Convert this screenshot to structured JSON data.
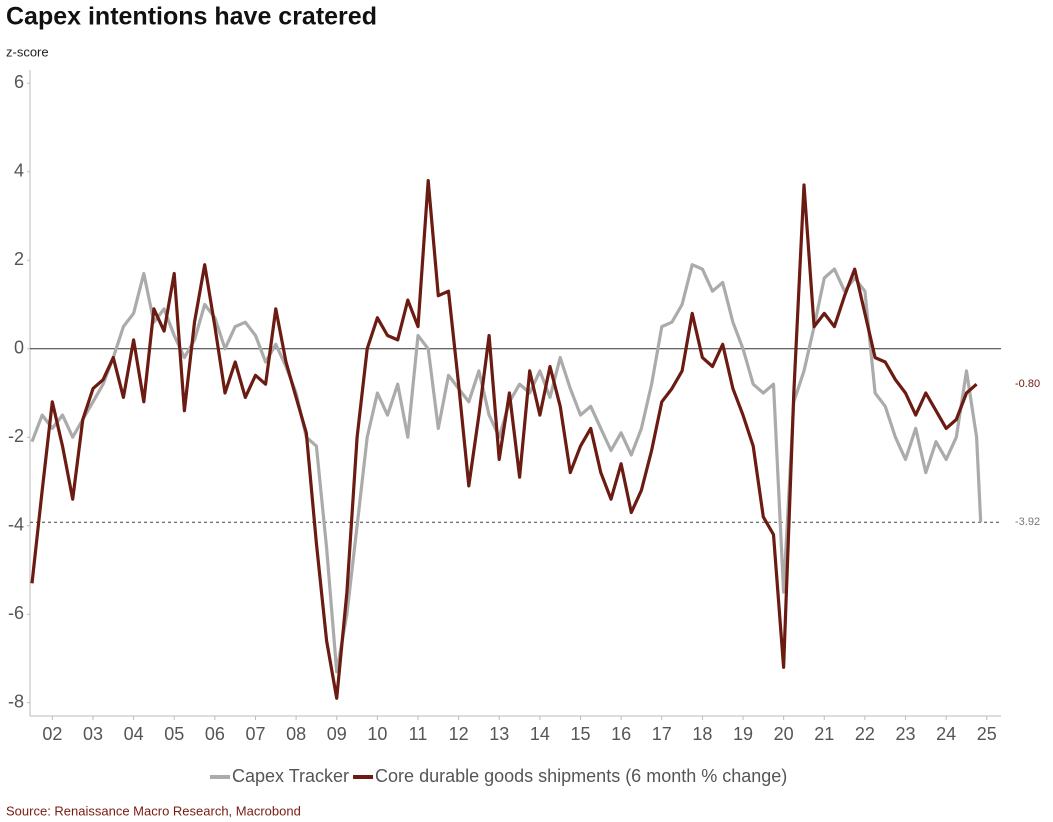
{
  "chart_data": {
    "type": "line",
    "title": "Capex intentions have cratered",
    "y_label": "z-score",
    "source": "Source: Renaissance Macro Research, Macrobond",
    "xlim": [
      2001.45,
      2025.35
    ],
    "xticks": [
      {
        "value": 2002,
        "label": "02"
      },
      {
        "value": 2003,
        "label": "03"
      },
      {
        "value": 2004,
        "label": "04"
      },
      {
        "value": 2005,
        "label": "05"
      },
      {
        "value": 2006,
        "label": "06"
      },
      {
        "value": 2007,
        "label": "07"
      },
      {
        "value": 2008,
        "label": "08"
      },
      {
        "value": 2009,
        "label": "09"
      },
      {
        "value": 2010,
        "label": "10"
      },
      {
        "value": 2011,
        "label": "11"
      },
      {
        "value": 2012,
        "label": "12"
      },
      {
        "value": 2013,
        "label": "13"
      },
      {
        "value": 2014,
        "label": "14"
      },
      {
        "value": 2015,
        "label": "15"
      },
      {
        "value": 2016,
        "label": "16"
      },
      {
        "value": 2017,
        "label": "17"
      },
      {
        "value": 2018,
        "label": "18"
      },
      {
        "value": 2019,
        "label": "19"
      },
      {
        "value": 2020,
        "label": "20"
      },
      {
        "value": 2021,
        "label": "21"
      },
      {
        "value": 2022,
        "label": "22"
      },
      {
        "value": 2023,
        "label": "23"
      },
      {
        "value": 2024,
        "label": "24"
      },
      {
        "value": 2025,
        "label": "25"
      }
    ],
    "ylim": [
      -8.3,
      6.3
    ],
    "yticks": [
      -8,
      -6,
      -4,
      -2,
      0,
      2,
      4,
      6
    ],
    "hlines": [
      {
        "value": 0,
        "style": "solid"
      },
      {
        "value": -3.92,
        "style": "dashed"
      }
    ],
    "annotations": [
      {
        "text": "-0.80",
        "value": -0.8
      },
      {
        "text": "-3.92",
        "value": -3.92
      }
    ],
    "series": [
      {
        "name": "Capex Tracker",
        "color": "#ababab",
        "x": [
          2001.5,
          2001.75,
          2002,
          2002.25,
          2002.5,
          2002.75,
          2003,
          2003.25,
          2003.5,
          2003.75,
          2004,
          2004.25,
          2004.5,
          2004.75,
          2005,
          2005.25,
          2005.5,
          2005.75,
          2006,
          2006.25,
          2006.5,
          2006.75,
          2007,
          2007.25,
          2007.5,
          2007.75,
          2008,
          2008.25,
          2008.5,
          2008.75,
          2009,
          2009.25,
          2009.5,
          2009.75,
          2010,
          2010.25,
          2010.5,
          2010.75,
          2011,
          2011.25,
          2011.5,
          2011.75,
          2012,
          2012.25,
          2012.5,
          2012.75,
          2013,
          2013.25,
          2013.5,
          2013.75,
          2014,
          2014.25,
          2014.5,
          2014.75,
          2015,
          2015.25,
          2015.5,
          2015.75,
          2016,
          2016.25,
          2016.5,
          2016.75,
          2017,
          2017.25,
          2017.5,
          2017.75,
          2018,
          2018.25,
          2018.5,
          2018.75,
          2019,
          2019.25,
          2019.5,
          2019.75,
          2020,
          2020.25,
          2020.5,
          2020.75,
          2021,
          2021.25,
          2021.5,
          2021.75,
          2022,
          2022.25,
          2022.5,
          2022.75,
          2023,
          2023.25,
          2023.5,
          2023.75,
          2024,
          2024.25,
          2024.5,
          2024.75,
          2024.85
        ],
        "values": [
          -2.1,
          -1.5,
          -1.8,
          -1.5,
          -2.0,
          -1.6,
          -1.2,
          -0.8,
          -0.2,
          0.5,
          0.8,
          1.7,
          0.6,
          0.9,
          0.3,
          -0.2,
          0.2,
          1.0,
          0.7,
          0.0,
          0.5,
          0.6,
          0.3,
          -0.3,
          0.1,
          -0.4,
          -1.0,
          -2.0,
          -2.2,
          -4.5,
          -7.3,
          -6.0,
          -4.0,
          -2.0,
          -1.0,
          -1.5,
          -0.8,
          -2.0,
          0.3,
          0.0,
          -1.8,
          -0.6,
          -0.9,
          -1.2,
          -0.5,
          -1.5,
          -2.0,
          -1.2,
          -0.8,
          -1.0,
          -0.5,
          -1.1,
          -0.2,
          -0.9,
          -1.5,
          -1.3,
          -1.8,
          -2.3,
          -1.9,
          -2.4,
          -1.8,
          -0.8,
          0.5,
          0.6,
          1.0,
          1.9,
          1.8,
          1.3,
          1.5,
          0.6,
          0.0,
          -0.8,
          -1.0,
          -0.8,
          -5.5,
          -1.2,
          -0.5,
          0.5,
          1.6,
          1.8,
          1.3,
          1.6,
          1.3,
          -1.0,
          -1.3,
          -2.0,
          -2.5,
          -1.8,
          -2.8,
          -2.1,
          -2.5,
          -2.0,
          -0.5,
          -2.0,
          -3.92
        ]
      },
      {
        "name": "Core durable goods shipments (6 month % change)",
        "color": "#6b1b12",
        "x": [
          2001.5,
          2001.75,
          2002,
          2002.25,
          2002.5,
          2002.75,
          2003,
          2003.25,
          2003.5,
          2003.75,
          2004,
          2004.25,
          2004.5,
          2004.75,
          2005,
          2005.25,
          2005.5,
          2005.75,
          2006,
          2006.25,
          2006.5,
          2006.75,
          2007,
          2007.25,
          2007.5,
          2007.75,
          2008,
          2008.25,
          2008.5,
          2008.75,
          2009,
          2009.25,
          2009.5,
          2009.75,
          2010,
          2010.25,
          2010.5,
          2010.75,
          2011,
          2011.25,
          2011.5,
          2011.75,
          2012,
          2012.25,
          2012.5,
          2012.75,
          2013,
          2013.25,
          2013.5,
          2013.75,
          2014,
          2014.25,
          2014.5,
          2014.75,
          2015,
          2015.25,
          2015.5,
          2015.75,
          2016,
          2016.25,
          2016.5,
          2016.75,
          2017,
          2017.25,
          2017.5,
          2017.75,
          2018,
          2018.25,
          2018.5,
          2018.75,
          2019,
          2019.25,
          2019.5,
          2019.75,
          2020,
          2020.25,
          2020.5,
          2020.75,
          2021,
          2021.25,
          2021.5,
          2021.75,
          2022,
          2022.25,
          2022.5,
          2022.75,
          2023,
          2023.25,
          2023.5,
          2023.75,
          2024,
          2024.25,
          2024.5,
          2024.75
        ],
        "values": [
          -5.3,
          -3.2,
          -1.2,
          -2.2,
          -3.4,
          -1.6,
          -0.9,
          -0.7,
          -0.2,
          -1.1,
          0.2,
          -1.2,
          0.9,
          0.4,
          1.7,
          -1.4,
          0.6,
          1.9,
          0.5,
          -1.0,
          -0.3,
          -1.1,
          -0.6,
          -0.8,
          0.9,
          -0.3,
          -1.1,
          -1.9,
          -4.4,
          -6.6,
          -7.9,
          -5.5,
          -2.0,
          0.0,
          0.7,
          0.3,
          0.2,
          1.1,
          0.5,
          3.8,
          1.2,
          1.3,
          -0.8,
          -3.1,
          -1.5,
          0.3,
          -2.5,
          -1.0,
          -2.9,
          -0.5,
          -1.5,
          -0.4,
          -1.3,
          -2.8,
          -2.2,
          -1.8,
          -2.8,
          -3.4,
          -2.6,
          -3.7,
          -3.2,
          -2.3,
          -1.2,
          -0.9,
          -0.5,
          0.8,
          -0.2,
          -0.4,
          0.1,
          -0.9,
          -1.5,
          -2.2,
          -3.8,
          -4.2,
          -7.2,
          -1.0,
          3.7,
          0.5,
          0.8,
          0.5,
          1.2,
          1.8,
          0.8,
          -0.2,
          -0.3,
          -0.7,
          -1.0,
          -1.5,
          -1.0,
          -1.4,
          -1.8,
          -1.6,
          -1.0,
          -0.8
        ]
      }
    ]
  }
}
